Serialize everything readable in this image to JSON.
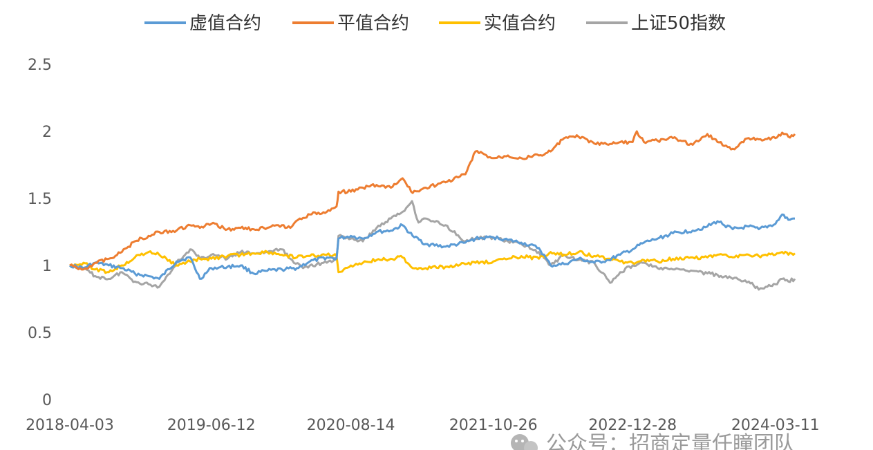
{
  "chart_data": {
    "type": "line",
    "title": "",
    "xlabel": "",
    "ylabel": "",
    "ylim": [
      0,
      2.5
    ],
    "yticks": [
      "0",
      "0.5",
      "1",
      "1.5",
      "2",
      "2.5"
    ],
    "xticks": [
      "2018-04-03",
      "2019-06-12",
      "2020-08-14",
      "2021-10-26",
      "2022-12-28",
      "2024-03-11"
    ],
    "x_range": [
      "2018-04-03",
      "2024-05-10"
    ],
    "grid": false,
    "legend_position": "top",
    "series": [
      {
        "name": "虚值合约",
        "color": "#5b9bd5",
        "points": [
          [
            "2018-04-03",
            1.0
          ],
          [
            "2018-05-15",
            0.98
          ],
          [
            "2018-06-20",
            1.02
          ],
          [
            "2018-08-01",
            1.0
          ],
          [
            "2018-09-10",
            0.98
          ],
          [
            "2018-10-20",
            0.94
          ],
          [
            "2018-12-01",
            0.92
          ],
          [
            "2019-01-03",
            0.9
          ],
          [
            "2019-02-25",
            1.03
          ],
          [
            "2019-04-08",
            1.06
          ],
          [
            "2019-05-08",
            0.9
          ],
          [
            "2019-06-12",
            0.98
          ],
          [
            "2019-08-01",
            0.99
          ],
          [
            "2019-09-10",
            1.0
          ],
          [
            "2019-10-20",
            0.94
          ],
          [
            "2019-12-01",
            0.96
          ],
          [
            "2020-01-15",
            0.97
          ],
          [
            "2020-03-01",
            0.98
          ],
          [
            "2020-04-10",
            1.03
          ],
          [
            "2020-06-01",
            1.06
          ],
          [
            "2020-07-01",
            1.05
          ],
          [
            "2020-07-07",
            1.2
          ],
          [
            "2020-08-14",
            1.22
          ],
          [
            "2020-09-20",
            1.2
          ],
          [
            "2020-11-01",
            1.25
          ],
          [
            "2020-12-15",
            1.26
          ],
          [
            "2021-01-20",
            1.3
          ],
          [
            "2021-02-20",
            1.22
          ],
          [
            "2021-04-01",
            1.16
          ],
          [
            "2021-06-01",
            1.14
          ],
          [
            "2021-08-01",
            1.17
          ],
          [
            "2021-09-01",
            1.2
          ],
          [
            "2021-10-26",
            1.21
          ],
          [
            "2021-12-10",
            1.19
          ],
          [
            "2022-01-20",
            1.17
          ],
          [
            "2022-03-15",
            1.13
          ],
          [
            "2022-04-20",
            1.0
          ],
          [
            "2022-06-01",
            1.01
          ],
          [
            "2022-07-15",
            1.05
          ],
          [
            "2022-09-01",
            1.02
          ],
          [
            "2022-10-15",
            1.04
          ],
          [
            "2022-11-20",
            1.08
          ],
          [
            "2022-12-28",
            1.12
          ],
          [
            "2023-02-01",
            1.17
          ],
          [
            "2023-03-15",
            1.2
          ],
          [
            "2023-05-01",
            1.24
          ],
          [
            "2023-07-01",
            1.26
          ],
          [
            "2023-08-15",
            1.29
          ],
          [
            "2023-09-15",
            1.33
          ],
          [
            "2023-11-01",
            1.27
          ],
          [
            "2023-12-20",
            1.29
          ],
          [
            "2024-01-20",
            1.27
          ],
          [
            "2024-03-11",
            1.31
          ],
          [
            "2024-04-01",
            1.38
          ],
          [
            "2024-04-20",
            1.34
          ],
          [
            "2024-05-10",
            1.35
          ]
        ]
      },
      {
        "name": "平值合约",
        "color": "#ed7d31",
        "points": [
          [
            "2018-04-03",
            1.0
          ],
          [
            "2018-05-15",
            0.97
          ],
          [
            "2018-06-20",
            1.02
          ],
          [
            "2018-08-01",
            1.05
          ],
          [
            "2018-09-10",
            1.1
          ],
          [
            "2018-10-20",
            1.18
          ],
          [
            "2018-12-01",
            1.22
          ],
          [
            "2019-01-03",
            1.25
          ],
          [
            "2019-02-25",
            1.26
          ],
          [
            "2019-04-08",
            1.3
          ],
          [
            "2019-05-08",
            1.28
          ],
          [
            "2019-06-12",
            1.31
          ],
          [
            "2019-08-01",
            1.27
          ],
          [
            "2019-09-10",
            1.28
          ],
          [
            "2019-10-20",
            1.27
          ],
          [
            "2019-12-01",
            1.28
          ],
          [
            "2020-01-15",
            1.3
          ],
          [
            "2020-02-10",
            1.28
          ],
          [
            "2020-03-10",
            1.35
          ],
          [
            "2020-04-10",
            1.38
          ],
          [
            "2020-06-01",
            1.4
          ],
          [
            "2020-07-01",
            1.44
          ],
          [
            "2020-07-07",
            1.55
          ],
          [
            "2020-08-14",
            1.55
          ],
          [
            "2020-09-20",
            1.58
          ],
          [
            "2020-11-01",
            1.6
          ],
          [
            "2020-12-15",
            1.58
          ],
          [
            "2021-01-20",
            1.65
          ],
          [
            "2021-02-20",
            1.54
          ],
          [
            "2021-04-01",
            1.58
          ],
          [
            "2021-06-01",
            1.62
          ],
          [
            "2021-08-01",
            1.68
          ],
          [
            "2021-09-01",
            1.85
          ],
          [
            "2021-10-26",
            1.8
          ],
          [
            "2021-12-10",
            1.82
          ],
          [
            "2022-01-20",
            1.8
          ],
          [
            "2022-03-15",
            1.82
          ],
          [
            "2022-04-20",
            1.85
          ],
          [
            "2022-06-01",
            1.95
          ],
          [
            "2022-07-15",
            1.96
          ],
          [
            "2022-09-01",
            1.91
          ],
          [
            "2022-10-15",
            1.9
          ],
          [
            "2022-11-20",
            1.92
          ],
          [
            "2022-12-28",
            1.92
          ],
          [
            "2023-01-10",
            2.0
          ],
          [
            "2023-02-01",
            1.92
          ],
          [
            "2023-03-15",
            1.93
          ],
          [
            "2023-05-01",
            1.95
          ],
          [
            "2023-07-01",
            1.9
          ],
          [
            "2023-08-15",
            1.98
          ],
          [
            "2023-09-15",
            1.92
          ],
          [
            "2023-11-01",
            1.87
          ],
          [
            "2023-12-20",
            1.95
          ],
          [
            "2024-01-20",
            1.94
          ],
          [
            "2024-03-11",
            1.95
          ],
          [
            "2024-04-01",
            1.99
          ],
          [
            "2024-04-20",
            1.96
          ],
          [
            "2024-05-10",
            1.98
          ]
        ]
      },
      {
        "name": "实值合约",
        "color": "#ffc000",
        "points": [
          [
            "2018-04-03",
            1.0
          ],
          [
            "2018-05-15",
            1.02
          ],
          [
            "2018-06-20",
            0.97
          ],
          [
            "2018-08-01",
            0.95
          ],
          [
            "2018-09-10",
            1.0
          ],
          [
            "2018-10-20",
            1.06
          ],
          [
            "2018-12-01",
            1.1
          ],
          [
            "2019-01-03",
            1.08
          ],
          [
            "2019-02-25",
            1.0
          ],
          [
            "2019-04-08",
            1.03
          ],
          [
            "2019-05-08",
            1.05
          ],
          [
            "2019-06-12",
            1.05
          ],
          [
            "2019-08-01",
            1.07
          ],
          [
            "2019-09-10",
            1.08
          ],
          [
            "2019-10-20",
            1.09
          ],
          [
            "2019-12-01",
            1.1
          ],
          [
            "2020-01-15",
            1.08
          ],
          [
            "2020-03-01",
            1.06
          ],
          [
            "2020-04-10",
            1.07
          ],
          [
            "2020-06-01",
            1.08
          ],
          [
            "2020-07-01",
            1.07
          ],
          [
            "2020-07-07",
            0.95
          ],
          [
            "2020-08-14",
            1.0
          ],
          [
            "2020-09-20",
            1.02
          ],
          [
            "2020-11-01",
            1.04
          ],
          [
            "2020-12-15",
            1.05
          ],
          [
            "2021-01-20",
            1.06
          ],
          [
            "2021-02-20",
            0.98
          ],
          [
            "2021-04-01",
            0.98
          ],
          [
            "2021-06-01",
            0.99
          ],
          [
            "2021-08-01",
            1.01
          ],
          [
            "2021-09-01",
            1.02
          ],
          [
            "2021-10-26",
            1.03
          ],
          [
            "2021-12-10",
            1.05
          ],
          [
            "2022-01-20",
            1.07
          ],
          [
            "2022-03-15",
            1.05
          ],
          [
            "2022-04-20",
            1.1
          ],
          [
            "2022-06-01",
            1.08
          ],
          [
            "2022-07-15",
            1.1
          ],
          [
            "2022-09-01",
            1.07
          ],
          [
            "2022-10-15",
            1.05
          ],
          [
            "2022-11-20",
            1.03
          ],
          [
            "2022-12-28",
            1.02
          ],
          [
            "2023-02-01",
            1.04
          ],
          [
            "2023-03-15",
            1.03
          ],
          [
            "2023-05-01",
            1.05
          ],
          [
            "2023-07-01",
            1.06
          ],
          [
            "2023-08-15",
            1.06
          ],
          [
            "2023-09-15",
            1.08
          ],
          [
            "2023-11-01",
            1.06
          ],
          [
            "2023-12-20",
            1.08
          ],
          [
            "2024-01-20",
            1.07
          ],
          [
            "2024-03-11",
            1.08
          ],
          [
            "2024-04-01",
            1.1
          ],
          [
            "2024-04-20",
            1.08
          ],
          [
            "2024-05-10",
            1.09
          ]
        ]
      },
      {
        "name": "上证50指数",
        "color": "#a5a5a5",
        "points": [
          [
            "2018-04-03",
            1.0
          ],
          [
            "2018-05-15",
            0.98
          ],
          [
            "2018-06-20",
            0.92
          ],
          [
            "2018-08-01",
            0.9
          ],
          [
            "2018-09-10",
            0.95
          ],
          [
            "2018-10-20",
            0.88
          ],
          [
            "2018-12-01",
            0.86
          ],
          [
            "2019-01-03",
            0.84
          ],
          [
            "2019-02-25",
            1.02
          ],
          [
            "2019-04-08",
            1.12
          ],
          [
            "2019-05-08",
            1.05
          ],
          [
            "2019-06-12",
            1.08
          ],
          [
            "2019-08-01",
            1.05
          ],
          [
            "2019-09-10",
            1.1
          ],
          [
            "2019-10-20",
            1.09
          ],
          [
            "2019-12-01",
            1.1
          ],
          [
            "2020-01-15",
            1.12
          ],
          [
            "2020-02-10",
            1.05
          ],
          [
            "2020-03-20",
            0.98
          ],
          [
            "2020-04-10",
            1.0
          ],
          [
            "2020-06-01",
            1.02
          ],
          [
            "2020-07-01",
            1.05
          ],
          [
            "2020-07-07",
            1.22
          ],
          [
            "2020-08-14",
            1.2
          ],
          [
            "2020-09-20",
            1.18
          ],
          [
            "2020-11-01",
            1.28
          ],
          [
            "2020-12-15",
            1.35
          ],
          [
            "2021-01-20",
            1.4
          ],
          [
            "2021-02-18",
            1.48
          ],
          [
            "2021-03-10",
            1.32
          ],
          [
            "2021-04-01",
            1.35
          ],
          [
            "2021-06-01",
            1.3
          ],
          [
            "2021-08-01",
            1.18
          ],
          [
            "2021-09-01",
            1.2
          ],
          [
            "2021-10-26",
            1.21
          ],
          [
            "2021-12-10",
            1.18
          ],
          [
            "2022-01-20",
            1.16
          ],
          [
            "2022-03-15",
            1.1
          ],
          [
            "2022-04-20",
            1.0
          ],
          [
            "2022-06-01",
            1.08
          ],
          [
            "2022-07-15",
            1.04
          ],
          [
            "2022-09-01",
            1.02
          ],
          [
            "2022-10-20",
            0.87
          ],
          [
            "2022-11-20",
            0.95
          ],
          [
            "2022-12-28",
            1.0
          ],
          [
            "2023-02-01",
            1.02
          ],
          [
            "2023-03-15",
            0.98
          ],
          [
            "2023-05-01",
            0.97
          ],
          [
            "2023-07-01",
            0.96
          ],
          [
            "2023-08-15",
            0.94
          ],
          [
            "2023-09-15",
            0.93
          ],
          [
            "2023-11-01",
            0.9
          ],
          [
            "2023-12-20",
            0.88
          ],
          [
            "2024-01-20",
            0.82
          ],
          [
            "2024-02-10",
            0.84
          ],
          [
            "2024-03-11",
            0.86
          ],
          [
            "2024-04-01",
            0.9
          ],
          [
            "2024-04-20",
            0.88
          ],
          [
            "2024-05-10",
            0.9
          ]
        ]
      }
    ]
  },
  "watermark": {
    "icon": "wechat-icon",
    "text": "公众号：招商定量任瞳团队"
  }
}
